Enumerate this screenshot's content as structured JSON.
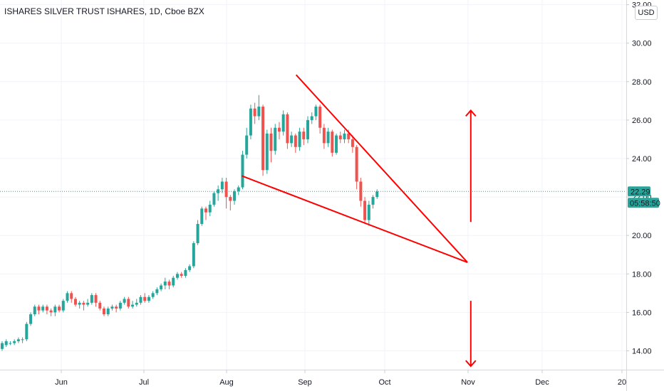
{
  "header": {
    "symbol_title": "ISHARES SILVER TRUST ISHARES, 1D, Cboe BZX",
    "currency_label": "USD"
  },
  "price_axis": {
    "last_price_label": "22.29",
    "countdown_label": "05:58:50"
  },
  "colors": {
    "up": "#26a69a",
    "down": "#ef5350",
    "drawing": "#ff0000",
    "price_line": "#26a69a"
  },
  "chart_data": {
    "type": "candlestick",
    "title": "ISHARES SILVER TRUST ISHARES, 1D, Cboe BZX",
    "ylim": [
      13,
      32.2
    ],
    "y_ticks": [
      "14.00",
      "16.00",
      "18.00",
      "20.00",
      "22.00",
      "24.00",
      "26.00",
      "28.00",
      "30.00",
      "32.00"
    ],
    "x_ticks": [
      "Jun",
      "Jul",
      "Aug",
      "Sep",
      "Oct",
      "Nov",
      "Dec",
      "20"
    ],
    "last_price": 22.29,
    "candles": [
      [
        14.1,
        14.4,
        14.0,
        14.5
      ],
      [
        14.3,
        14.5,
        14.2,
        14.6
      ],
      [
        14.4,
        14.4,
        14.3,
        14.5
      ],
      [
        14.4,
        14.5,
        14.3,
        14.6
      ],
      [
        14.5,
        14.6,
        14.4,
        14.7
      ],
      [
        14.6,
        14.6,
        14.4,
        14.7
      ],
      [
        14.6,
        15.4,
        14.5,
        15.5
      ],
      [
        15.4,
        15.9,
        15.3,
        16.0
      ],
      [
        15.9,
        16.3,
        15.8,
        16.4
      ],
      [
        16.3,
        16.1,
        15.9,
        16.4
      ],
      [
        16.1,
        16.3,
        16.0,
        16.4
      ],
      [
        16.3,
        16.1,
        15.9,
        16.4
      ],
      [
        16.1,
        16.0,
        15.8,
        16.2
      ],
      [
        16.0,
        16.3,
        15.8,
        16.4
      ],
      [
        16.3,
        16.1,
        16.0,
        16.4
      ],
      [
        16.1,
        16.6,
        16.0,
        16.7
      ],
      [
        16.6,
        17.0,
        16.5,
        17.1
      ],
      [
        17.0,
        16.7,
        16.5,
        17.1
      ],
      [
        16.7,
        16.4,
        16.3,
        16.8
      ],
      [
        16.4,
        16.5,
        16.2,
        16.6
      ],
      [
        16.5,
        16.4,
        16.1,
        16.6
      ],
      [
        16.4,
        16.5,
        16.3,
        16.7
      ],
      [
        16.5,
        16.9,
        16.4,
        17.0
      ],
      [
        16.9,
        16.5,
        16.3,
        17.0
      ],
      [
        16.5,
        16.2,
        16.1,
        16.6
      ],
      [
        16.2,
        15.9,
        15.8,
        16.3
      ],
      [
        15.9,
        16.2,
        15.8,
        16.3
      ],
      [
        16.2,
        16.3,
        16.1,
        16.4
      ],
      [
        16.3,
        16.2,
        16.0,
        16.4
      ],
      [
        16.2,
        16.5,
        16.1,
        16.6
      ],
      [
        16.5,
        16.7,
        16.4,
        16.8
      ],
      [
        16.7,
        16.3,
        16.2,
        16.8
      ],
      [
        16.3,
        16.4,
        16.2,
        16.6
      ],
      [
        16.4,
        16.5,
        16.3,
        16.7
      ],
      [
        16.5,
        16.8,
        16.4,
        16.9
      ],
      [
        16.8,
        16.6,
        16.5,
        17.0
      ],
      [
        16.6,
        16.8,
        16.5,
        16.9
      ],
      [
        16.8,
        17.0,
        16.7,
        17.1
      ],
      [
        17.0,
        17.2,
        16.9,
        17.3
      ],
      [
        17.2,
        17.4,
        17.1,
        17.5
      ],
      [
        17.4,
        17.6,
        17.2,
        17.8
      ],
      [
        17.6,
        17.4,
        17.2,
        17.7
      ],
      [
        17.4,
        17.8,
        17.3,
        17.9
      ],
      [
        17.8,
        18.0,
        17.7,
        18.1
      ],
      [
        18.0,
        17.9,
        17.8,
        18.1
      ],
      [
        17.9,
        18.2,
        17.8,
        18.3
      ],
      [
        18.2,
        18.4,
        18.1,
        18.5
      ],
      [
        18.4,
        19.6,
        18.3,
        19.7
      ],
      [
        19.6,
        20.6,
        19.5,
        20.8
      ],
      [
        20.6,
        21.4,
        20.5,
        21.5
      ],
      [
        21.4,
        21.2,
        20.8,
        21.5
      ],
      [
        21.2,
        21.6,
        21.0,
        21.8
      ],
      [
        21.6,
        22.2,
        21.5,
        22.3
      ],
      [
        22.2,
        22.4,
        21.8,
        22.6
      ],
      [
        22.4,
        22.8,
        22.2,
        23.0
      ],
      [
        22.8,
        22.0,
        21.4,
        23.0
      ],
      [
        22.0,
        21.8,
        21.3,
        22.1
      ],
      [
        21.8,
        22.3,
        21.6,
        22.4
      ],
      [
        22.3,
        22.5,
        22.1,
        22.6
      ],
      [
        22.5,
        24.2,
        22.4,
        24.4
      ],
      [
        24.2,
        25.2,
        24.0,
        25.6
      ],
      [
        25.2,
        26.6,
        25.0,
        26.8
      ],
      [
        26.6,
        26.2,
        25.8,
        26.9
      ],
      [
        26.2,
        26.7,
        26.0,
        27.3
      ],
      [
        26.7,
        23.4,
        23.1,
        26.8
      ],
      [
        23.4,
        25.3,
        23.2,
        25.5
      ],
      [
        25.3,
        24.4,
        23.8,
        25.6
      ],
      [
        24.4,
        25.6,
        24.2,
        25.8
      ],
      [
        25.6,
        25.4,
        25.0,
        25.9
      ],
      [
        25.4,
        26.3,
        25.2,
        26.5
      ],
      [
        26.3,
        24.8,
        24.5,
        26.4
      ],
      [
        24.8,
        25.2,
        24.6,
        25.4
      ],
      [
        25.2,
        24.6,
        24.3,
        25.3
      ],
      [
        24.6,
        25.4,
        24.4,
        25.6
      ],
      [
        25.4,
        25.0,
        24.7,
        25.6
      ],
      [
        25.0,
        26.0,
        24.8,
        26.2
      ],
      [
        26.0,
        26.2,
        25.8,
        26.4
      ],
      [
        26.2,
        26.7,
        26.0,
        26.8
      ],
      [
        26.7,
        25.6,
        25.3,
        26.8
      ],
      [
        25.6,
        24.8,
        24.5,
        25.8
      ],
      [
        24.8,
        25.4,
        24.6,
        25.6
      ],
      [
        25.4,
        24.3,
        24.1,
        25.5
      ],
      [
        24.3,
        25.2,
        24.2,
        25.3
      ],
      [
        25.2,
        25.0,
        24.8,
        25.4
      ],
      [
        25.0,
        25.3,
        24.8,
        25.5
      ],
      [
        25.3,
        25.0,
        24.8,
        25.5
      ],
      [
        25.0,
        24.6,
        24.3,
        25.2
      ],
      [
        24.6,
        22.8,
        22.4,
        24.7
      ],
      [
        22.8,
        21.8,
        21.5,
        23.0
      ],
      [
        21.8,
        20.8,
        20.6,
        22.0
      ],
      [
        20.8,
        21.6,
        20.5,
        21.8
      ],
      [
        21.6,
        22.0,
        21.4,
        22.1
      ],
      [
        22.0,
        22.29,
        21.9,
        22.4
      ]
    ],
    "drawings": {
      "falling_wedge_upper": [
        [
          28.35,
          0.446
        ],
        [
          18.6,
          0.704
        ]
      ],
      "falling_wedge_lower": [
        [
          23.1,
          0.364
        ],
        [
          18.6,
          0.704
        ]
      ],
      "arrow_up": [
        [
          20.7,
          0.709
        ],
        [
          26.5,
          0.709
        ]
      ],
      "arrow_down": [
        [
          16.6,
          0.709
        ],
        [
          13.2,
          0.709
        ]
      ]
    }
  }
}
